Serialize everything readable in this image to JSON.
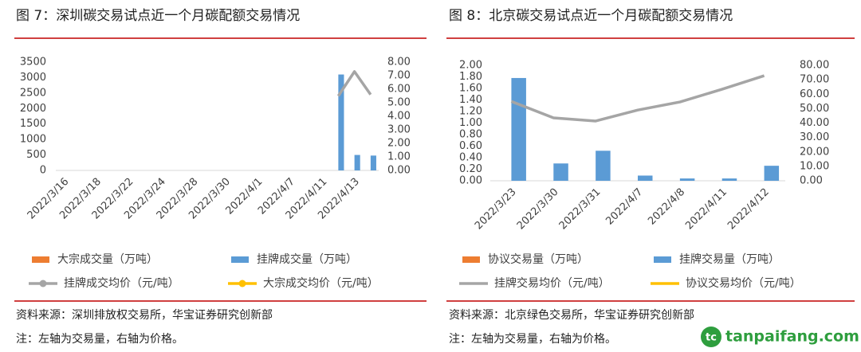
{
  "chart_data": [
    {
      "type": "bar",
      "title": "图 7：深圳碳交易试点近一个月碳配额交易情况",
      "categories": [
        "2022/3/16",
        null,
        "2022/3/18",
        null,
        "2022/3/22",
        null,
        "2022/3/24",
        null,
        "2022/3/28",
        null,
        "2022/3/30",
        null,
        "2022/4/1",
        null,
        "2022/4/7",
        null,
        "2022/4/11",
        null,
        "2022/4/13",
        null
      ],
      "series": [
        {
          "name": "大宗成交量（万吨）",
          "color": "#ed7d31",
          "type": "bar",
          "values": [
            null,
            null,
            null,
            null,
            null,
            null,
            null,
            null,
            null,
            null,
            null,
            null,
            null,
            null,
            null,
            null,
            null,
            null,
            null,
            null
          ]
        },
        {
          "name": "挂牌成交量（万吨）",
          "color": "#5b9bd5",
          "type": "bar",
          "values": [
            null,
            null,
            null,
            null,
            null,
            null,
            null,
            null,
            null,
            null,
            null,
            null,
            null,
            null,
            null,
            null,
            null,
            3100,
            500,
            480
          ]
        },
        {
          "name": "挂牌成交均价（元/吨）",
          "color": "#a5a5a5",
          "type": "line",
          "axis": "y2",
          "markers": true,
          "values": [
            null,
            null,
            null,
            null,
            null,
            null,
            null,
            null,
            null,
            null,
            null,
            null,
            null,
            null,
            null,
            null,
            null,
            5.5,
            7.3,
            5.6
          ]
        },
        {
          "name": "大宗成交均价（元/吨）",
          "color": "#ffc000",
          "type": "line",
          "axis": "y2",
          "markers": true,
          "values": [
            null,
            null,
            null,
            null,
            null,
            null,
            null,
            null,
            null,
            null,
            null,
            null,
            null,
            null,
            null,
            null,
            null,
            null,
            null,
            null
          ]
        }
      ],
      "ylim": [
        0,
        3500
      ],
      "yticks": [
        0,
        500,
        1000,
        1500,
        2000,
        2500,
        3000,
        3500
      ],
      "y2lim": [
        0,
        8
      ],
      "y2ticks": [
        {
          "value": 0,
          "label": "0.00"
        },
        {
          "value": 1,
          "label": "1.00"
        },
        {
          "value": 2,
          "label": "2.00"
        },
        {
          "value": 3,
          "label": "3.00"
        },
        {
          "value": 4,
          "label": "4.00"
        },
        {
          "value": 5,
          "label": "5.00"
        },
        {
          "value": 6,
          "label": "6.00"
        },
        {
          "value": 7,
          "label": "7.00"
        },
        {
          "value": 8,
          "label": "8.00"
        }
      ],
      "grid": false,
      "source": "资料来源：深圳排放权交易所，华宝证券研究创新部",
      "note": "注：左轴为交易量，右轴为价格。"
    },
    {
      "type": "bar",
      "title": "图 8：北京碳交易试点近一个月碳配额交易情况",
      "categories": [
        "2022/3/23",
        "2022/3/30",
        "2022/3/31",
        "2022/4/7",
        "2022/4/8",
        "2022/4/11",
        "2022/4/12"
      ],
      "series": [
        {
          "name": "协议交易量（万吨）",
          "color": "#ed7d31",
          "type": "bar",
          "values": [
            null,
            null,
            null,
            null,
            null,
            null,
            null
          ]
        },
        {
          "name": "挂牌交易量（万吨）",
          "color": "#5b9bd5",
          "type": "bar",
          "values": [
            1.78,
            0.3,
            0.52,
            0.09,
            0.04,
            0.04,
            0.26
          ]
        },
        {
          "name": "挂牌交易均价（元/吨）",
          "color": "#a5a5a5",
          "type": "line",
          "axis": "y2",
          "markers": false,
          "values": [
            55,
            43.6,
            41.4,
            49,
            54.6,
            63.4,
            72.8
          ]
        },
        {
          "name": "协议交易均价（元/吨）",
          "color": "#ffc000",
          "type": "line",
          "axis": "y2",
          "markers": false,
          "values": [
            null,
            null,
            null,
            null,
            null,
            null,
            null
          ]
        }
      ],
      "ylim": [
        0,
        2
      ],
      "yticks": [
        {
          "value": 0,
          "label": "0.00"
        },
        {
          "value": 0.2,
          "label": "0.20"
        },
        {
          "value": 0.4,
          "label": "0.40"
        },
        {
          "value": 0.6,
          "label": "0.60"
        },
        {
          "value": 0.8,
          "label": "0.80"
        },
        {
          "value": 1,
          "label": "1.00"
        },
        {
          "value": 1.2,
          "label": "1.20"
        },
        {
          "value": 1.4,
          "label": "1.40"
        },
        {
          "value": 1.6,
          "label": "1.60"
        },
        {
          "value": 1.8,
          "label": "1.80"
        },
        {
          "value": 2,
          "label": "2.00"
        }
      ],
      "y2lim": [
        0,
        80
      ],
      "y2ticks": [
        {
          "value": 0,
          "label": "0.00"
        },
        {
          "value": 10,
          "label": "10.00"
        },
        {
          "value": 20,
          "label": "20.00"
        },
        {
          "value": 30,
          "label": "30.00"
        },
        {
          "value": 40,
          "label": "40.00"
        },
        {
          "value": 50,
          "label": "50.00"
        },
        {
          "value": 60,
          "label": "60.00"
        },
        {
          "value": 70,
          "label": "70.00"
        },
        {
          "value": 80,
          "label": "80.00"
        }
      ],
      "grid": false,
      "source": "资料来源：北京绿色交易所，华宝证券研究创新部",
      "note": "注：左轴为交易量，右轴为价格。"
    }
  ],
  "watermark": "tanpaifang.com"
}
